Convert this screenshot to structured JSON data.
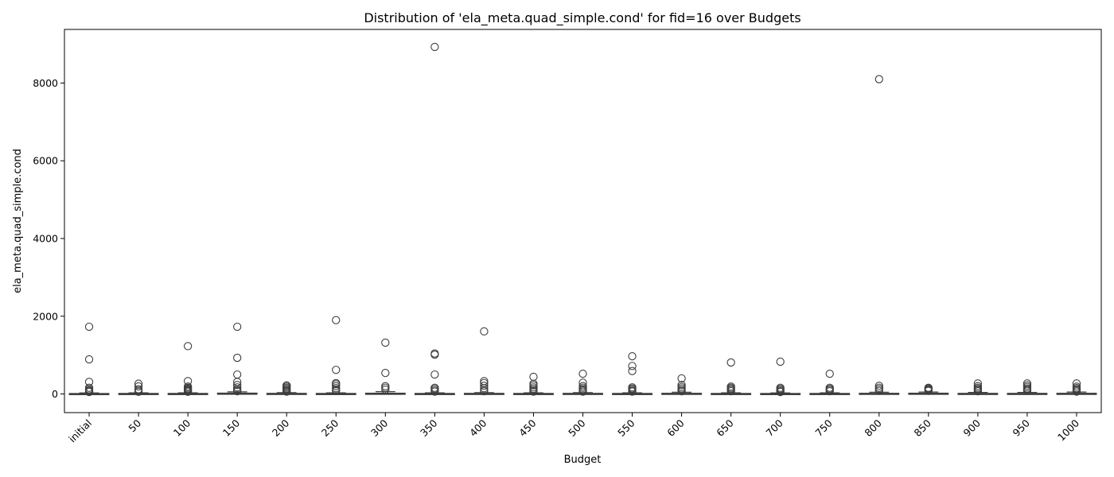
{
  "chart_data": {
    "type": "boxplot",
    "title": "Distribution of 'ela_meta.quad_simple.cond' for fid=16 over Budgets",
    "xlabel": "Budget",
    "ylabel": "ela_meta.quad_simple.cond",
    "ylim": [
      -480,
      9380
    ],
    "yticks": [
      0,
      2000,
      4000,
      6000,
      8000
    ],
    "grid": false,
    "legend": "none",
    "colors": {
      "box_edge": "#3d3d3d",
      "box_fill": "#ffffff",
      "axes": "#000000"
    },
    "categories": [
      "initial",
      "50",
      "100",
      "150",
      "200",
      "250",
      "300",
      "350",
      "400",
      "450",
      "500",
      "550",
      "600",
      "650",
      "700",
      "750",
      "800",
      "850",
      "900",
      "950",
      "1000"
    ],
    "boxes": [
      {
        "q1": 2,
        "median": 5,
        "q3": 12,
        "whisker_low": 0,
        "whisker_high": 28,
        "outliers": [
          1730,
          890,
          310,
          160,
          120,
          90,
          70,
          50
        ]
      },
      {
        "q1": 2,
        "median": 5,
        "q3": 14,
        "whisker_low": 0,
        "whisker_high": 30,
        "outliers": [
          265,
          195,
          120,
          85,
          55
        ]
      },
      {
        "q1": 2,
        "median": 6,
        "q3": 14,
        "whisker_low": 0,
        "whisker_high": 30,
        "outliers": [
          1230,
          330,
          190,
          160,
          130,
          110,
          90,
          70,
          55
        ]
      },
      {
        "q1": 3,
        "median": 8,
        "q3": 22,
        "whisker_low": 0,
        "whisker_high": 55,
        "outliers": [
          1730,
          930,
          500,
          310,
          230,
          170,
          120,
          90,
          70
        ]
      },
      {
        "q1": 2,
        "median": 6,
        "q3": 16,
        "whisker_low": 0,
        "whisker_high": 35,
        "outliers": [
          220,
          190,
          160,
          130,
          100,
          80,
          60
        ]
      },
      {
        "q1": 2,
        "median": 6,
        "q3": 14,
        "whisker_low": 0,
        "whisker_high": 30,
        "outliers": [
          1900,
          620,
          280,
          250,
          200,
          150,
          110,
          80
        ]
      },
      {
        "q1": 2,
        "median": 7,
        "q3": 20,
        "whisker_low": 0,
        "whisker_high": 60,
        "outliers": [
          1320,
          540,
          200,
          160,
          110
        ]
      },
      {
        "q1": 2,
        "median": 6,
        "q3": 14,
        "whisker_low": 0,
        "whisker_high": 30,
        "outliers": [
          8930,
          1040,
          1010,
          500,
          160,
          130,
          90,
          60
        ]
      },
      {
        "q1": 2,
        "median": 6,
        "q3": 16,
        "whisker_low": 0,
        "whisker_high": 35,
        "outliers": [
          1610,
          330,
          280,
          210,
          150,
          100,
          70
        ]
      },
      {
        "q1": 2,
        "median": 6,
        "q3": 14,
        "whisker_low": 0,
        "whisker_high": 30,
        "outliers": [
          440,
          260,
          220,
          170,
          130,
          90,
          60
        ]
      },
      {
        "q1": 2,
        "median": 6,
        "q3": 16,
        "whisker_low": 0,
        "whisker_high": 35,
        "outliers": [
          520,
          290,
          200,
          160,
          120,
          90,
          60
        ]
      },
      {
        "q1": 2,
        "median": 6,
        "q3": 14,
        "whisker_low": 0,
        "whisker_high": 30,
        "outliers": [
          970,
          720,
          590,
          170,
          140,
          110,
          80,
          60
        ]
      },
      {
        "q1": 2,
        "median": 7,
        "q3": 18,
        "whisker_low": 0,
        "whisker_high": 45,
        "outliers": [
          400,
          230,
          180,
          140,
          100,
          70
        ]
      },
      {
        "q1": 2,
        "median": 6,
        "q3": 14,
        "whisker_low": 0,
        "whisker_high": 30,
        "outliers": [
          810,
          190,
          160,
          130,
          100,
          70
        ]
      },
      {
        "q1": 2,
        "median": 5,
        "q3": 13,
        "whisker_low": 0,
        "whisker_high": 28,
        "outliers": [
          830,
          160,
          130,
          100,
          70,
          50
        ]
      },
      {
        "q1": 2,
        "median": 6,
        "q3": 14,
        "whisker_low": 0,
        "whisker_high": 30,
        "outliers": [
          520,
          160,
          130,
          100,
          70
        ]
      },
      {
        "q1": 2,
        "median": 7,
        "q3": 18,
        "whisker_low": 0,
        "whisker_high": 45,
        "outliers": [
          8100,
          210,
          160,
          120,
          80
        ]
      },
      {
        "q1": 3,
        "median": 8,
        "q3": 20,
        "whisker_low": 0,
        "whisker_high": 50,
        "outliers": [
          160,
          140,
          120,
          100,
          80
        ]
      },
      {
        "q1": 2,
        "median": 6,
        "q3": 16,
        "whisker_low": 0,
        "whisker_high": 40,
        "outliers": [
          270,
          200,
          160,
          130,
          100,
          70
        ]
      },
      {
        "q1": 2,
        "median": 6,
        "q3": 16,
        "whisker_low": 0,
        "whisker_high": 40,
        "outliers": [
          270,
          220,
          180,
          140,
          110,
          80
        ]
      },
      {
        "q1": 2,
        "median": 7,
        "q3": 18,
        "whisker_low": 0,
        "whisker_high": 50,
        "outliers": [
          270,
          190,
          150,
          120,
          90,
          60
        ]
      }
    ]
  }
}
